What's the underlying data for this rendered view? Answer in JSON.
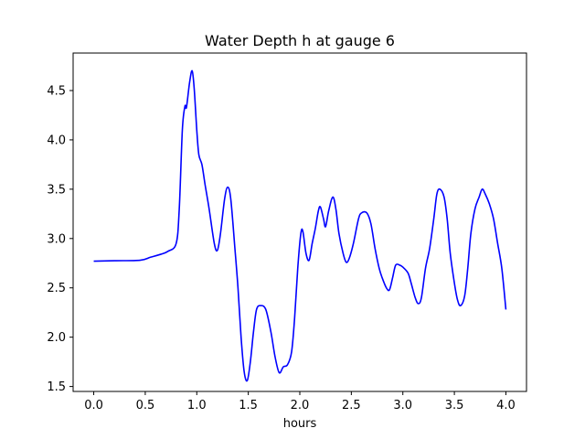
{
  "chart_data": {
    "type": "line",
    "title": "Water Depth h at gauge 6",
    "xlabel": "hours",
    "ylabel": "",
    "xlim": [
      -0.2,
      4.2
    ],
    "ylim": [
      1.45,
      4.88
    ],
    "xticks": [
      0.0,
      0.5,
      1.0,
      1.5,
      2.0,
      2.5,
      3.0,
      3.5,
      4.0
    ],
    "xtick_labels": [
      "0.0",
      "0.5",
      "1.0",
      "1.5",
      "2.0",
      "2.5",
      "3.0",
      "3.5",
      "4.0"
    ],
    "yticks": [
      1.5,
      2.0,
      2.5,
      3.0,
      3.5,
      4.0,
      4.5
    ],
    "ytick_labels": [
      "1.5",
      "2.0",
      "2.5",
      "3.0",
      "3.5",
      "4.0",
      "4.5"
    ],
    "grid": false,
    "legend": "none",
    "series": [
      {
        "color": "#0000ff",
        "points": [
          [
            0.0,
            2.77
          ],
          [
            0.2,
            2.775
          ],
          [
            0.45,
            2.78
          ],
          [
            0.55,
            2.81
          ],
          [
            0.65,
            2.84
          ],
          [
            0.72,
            2.87
          ],
          [
            0.8,
            2.95
          ],
          [
            0.83,
            3.3
          ],
          [
            0.86,
            4.1
          ],
          [
            0.885,
            4.34
          ],
          [
            0.9,
            4.33
          ],
          [
            0.93,
            4.58
          ],
          [
            0.955,
            4.7
          ],
          [
            0.975,
            4.52
          ],
          [
            1.0,
            4.1
          ],
          [
            1.02,
            3.85
          ],
          [
            1.05,
            3.75
          ],
          [
            1.08,
            3.55
          ],
          [
            1.12,
            3.3
          ],
          [
            1.17,
            2.95
          ],
          [
            1.2,
            2.88
          ],
          [
            1.23,
            3.05
          ],
          [
            1.27,
            3.4
          ],
          [
            1.3,
            3.52
          ],
          [
            1.33,
            3.4
          ],
          [
            1.37,
            2.9
          ],
          [
            1.4,
            2.5
          ],
          [
            1.43,
            2.0
          ],
          [
            1.46,
            1.65
          ],
          [
            1.49,
            1.56
          ],
          [
            1.52,
            1.75
          ],
          [
            1.55,
            2.05
          ],
          [
            1.58,
            2.28
          ],
          [
            1.62,
            2.32
          ],
          [
            1.67,
            2.28
          ],
          [
            1.72,
            2.05
          ],
          [
            1.76,
            1.8
          ],
          [
            1.8,
            1.64
          ],
          [
            1.84,
            1.7
          ],
          [
            1.88,
            1.72
          ],
          [
            1.92,
            1.85
          ],
          [
            1.95,
            2.2
          ],
          [
            1.98,
            2.7
          ],
          [
            2.01,
            3.05
          ],
          [
            2.03,
            3.07
          ],
          [
            2.06,
            2.85
          ],
          [
            2.09,
            2.78
          ],
          [
            2.12,
            2.95
          ],
          [
            2.15,
            3.1
          ],
          [
            2.18,
            3.28
          ],
          [
            2.2,
            3.32
          ],
          [
            2.23,
            3.2
          ],
          [
            2.25,
            3.12
          ],
          [
            2.28,
            3.28
          ],
          [
            2.32,
            3.42
          ],
          [
            2.35,
            3.3
          ],
          [
            2.38,
            3.05
          ],
          [
            2.42,
            2.85
          ],
          [
            2.45,
            2.76
          ],
          [
            2.48,
            2.8
          ],
          [
            2.52,
            2.95
          ],
          [
            2.57,
            3.2
          ],
          [
            2.6,
            3.26
          ],
          [
            2.65,
            3.26
          ],
          [
            2.69,
            3.15
          ],
          [
            2.73,
            2.9
          ],
          [
            2.77,
            2.7
          ],
          [
            2.8,
            2.6
          ],
          [
            2.84,
            2.5
          ],
          [
            2.87,
            2.48
          ],
          [
            2.9,
            2.6
          ],
          [
            2.93,
            2.73
          ],
          [
            2.97,
            2.73
          ],
          [
            3.0,
            2.71
          ],
          [
            3.05,
            2.65
          ],
          [
            3.08,
            2.55
          ],
          [
            3.12,
            2.4
          ],
          [
            3.15,
            2.34
          ],
          [
            3.18,
            2.4
          ],
          [
            3.22,
            2.7
          ],
          [
            3.26,
            2.9
          ],
          [
            3.3,
            3.2
          ],
          [
            3.33,
            3.45
          ],
          [
            3.36,
            3.5
          ],
          [
            3.4,
            3.42
          ],
          [
            3.43,
            3.2
          ],
          [
            3.46,
            2.85
          ],
          [
            3.5,
            2.55
          ],
          [
            3.53,
            2.38
          ],
          [
            3.56,
            2.32
          ],
          [
            3.6,
            2.42
          ],
          [
            3.63,
            2.7
          ],
          [
            3.66,
            3.05
          ],
          [
            3.7,
            3.3
          ],
          [
            3.74,
            3.42
          ],
          [
            3.77,
            3.5
          ],
          [
            3.8,
            3.45
          ],
          [
            3.84,
            3.35
          ],
          [
            3.88,
            3.2
          ],
          [
            3.92,
            2.95
          ],
          [
            3.96,
            2.7
          ],
          [
            4.0,
            2.28
          ]
        ]
      }
    ]
  }
}
